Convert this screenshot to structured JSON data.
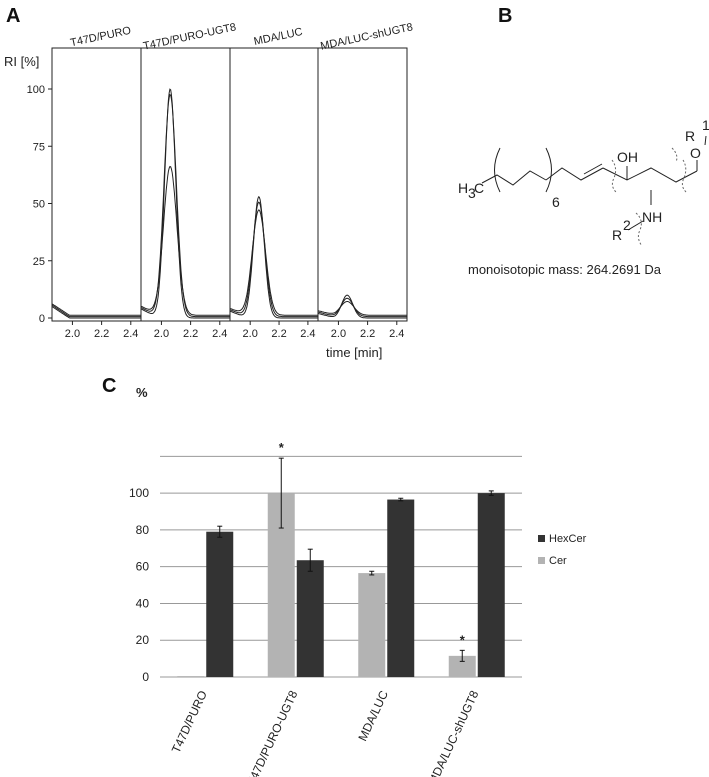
{
  "panels": {
    "a": "A",
    "b": "B",
    "c": "C"
  },
  "panel_b": {
    "oh": "OH",
    "o": "O",
    "r1": "R",
    "r1_sup": "1",
    "h3c": "H",
    "h3c_sub": "3",
    "c": "C",
    "repeat": "6",
    "nh": "NH",
    "r2": "R",
    "r2_sup": "2",
    "mass_label": "monoisotopic mass:  264.2691 Da"
  },
  "chart_data": [
    {
      "type": "line",
      "panel": "A",
      "ylabel": "RI [%]",
      "xlabel": "time [min]",
      "ylim": [
        0,
        100
      ],
      "y_ticks": [
        "0",
        "25",
        "50",
        "75",
        "100"
      ],
      "x_ticks": [
        "2.0",
        "2.2",
        "2.4"
      ],
      "xlim": [
        1.86,
        2.47
      ],
      "subplots": [
        {
          "title": "T47D/PURO",
          "peaks": [
            0,
            0,
            0
          ],
          "baseline_start": 5
        },
        {
          "title": "T47D/PURO-UGT8",
          "peaks": [
            100,
            97,
            65
          ],
          "baseline_start": 4
        },
        {
          "title": "MDA/LUC",
          "peaks": [
            53,
            50,
            46
          ],
          "baseline_start": 3
        },
        {
          "title": "MDA/LUC-shUGT8",
          "peaks": [
            10,
            8,
            6
          ],
          "baseline_start": 2
        }
      ]
    },
    {
      "type": "bar",
      "panel": "C",
      "ylabel": "%",
      "ylim": [
        0,
        120
      ],
      "y_ticks": [
        "0",
        "20",
        "40",
        "60",
        "80",
        "100"
      ],
      "categories": [
        "T47D/PURO",
        "T47D/PURO-UGT8",
        "MDA/LUC",
        "MDA/LUC-shUGT8"
      ],
      "series": [
        {
          "name": "Cer",
          "color": "#b3b3b3",
          "values": [
            0.5,
            100,
            56.5,
            11.5
          ],
          "errors": [
            0,
            19,
            1,
            3
          ]
        },
        {
          "name": "HexCer",
          "color": "#333333",
          "values": [
            79,
            63.5,
            96.5,
            100
          ],
          "errors": [
            3,
            6,
            0.7,
            1.2
          ]
        }
      ],
      "legend": [
        "HexCer",
        "Cer"
      ],
      "legend_position": "right",
      "annotations": [
        {
          "text": "*",
          "category": "T47D/PURO-UGT8"
        },
        {
          "text": "*",
          "category": "MDA/LUC-shUGT8"
        }
      ],
      "grid": true
    }
  ]
}
